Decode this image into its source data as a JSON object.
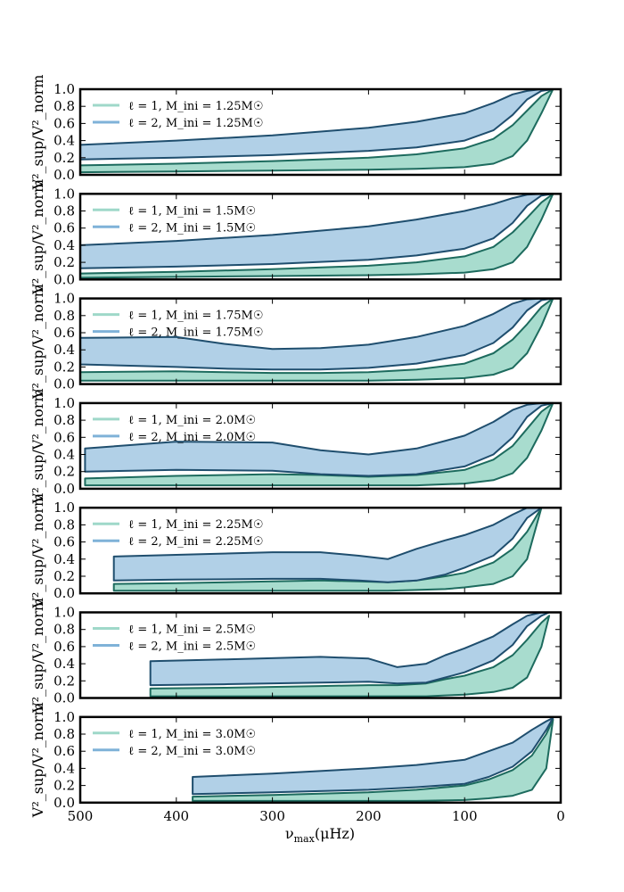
{
  "chart_data": {
    "type": "area",
    "shared_x_axis": {
      "label": "ν_max(μHz)",
      "label_text": "ν",
      "label_sub": "max",
      "label_unit": "(μHz)",
      "xlim": [
        500,
        0
      ],
      "ticks": [
        500,
        400,
        300,
        200,
        100,
        0
      ],
      "tick_labels": [
        "500",
        "400",
        "300",
        "200",
        "100",
        "0"
      ]
    },
    "ylabel": "V²_sup/V²_norm",
    "ylim": [
      0,
      1
    ],
    "y_ticks": [
      0.0,
      0.2,
      0.4,
      0.6,
      0.8,
      1.0
    ],
    "y_tick_labels": [
      "0.0",
      "0.2",
      "0.4",
      "0.6",
      "0.8",
      "1.0"
    ],
    "series_colors": {
      "l1": "#9fd8c9",
      "l2": "#a9cbe4",
      "edge": "#1f4e6e",
      "l1_edge": "#1d6b5e"
    },
    "panels": [
      {
        "legend": [
          "ℓ = 1, M_ini = 1.25M☉",
          "ℓ = 2, M_ini = 1.25M☉"
        ],
        "mass": "1.25",
        "l2_band": {
          "x": [
            500,
            400,
            300,
            200,
            150,
            100,
            70,
            50,
            35,
            20,
            8
          ],
          "upper": [
            0.35,
            0.4,
            0.46,
            0.55,
            0.62,
            0.72,
            0.84,
            0.94,
            0.98,
            1.0,
            1.0
          ],
          "lower": [
            0.18,
            0.2,
            0.23,
            0.28,
            0.32,
            0.4,
            0.52,
            0.7,
            0.88,
            0.98,
            1.0
          ]
        },
        "l1_band": {
          "x": [
            500,
            400,
            300,
            200,
            150,
            100,
            70,
            50,
            35,
            20,
            8
          ],
          "upper": [
            0.11,
            0.13,
            0.16,
            0.2,
            0.24,
            0.31,
            0.42,
            0.58,
            0.75,
            0.92,
            1.0
          ],
          "lower": [
            0.03,
            0.04,
            0.05,
            0.06,
            0.07,
            0.09,
            0.13,
            0.22,
            0.4,
            0.72,
            1.0
          ]
        }
      },
      {
        "legend": [
          "ℓ = 1, M_ini = 1.5M☉",
          "ℓ = 2, M_ini = 1.5M☉"
        ],
        "mass": "1.5",
        "l2_band": {
          "x": [
            500,
            400,
            300,
            200,
            150,
            100,
            70,
            50,
            35,
            20,
            8
          ],
          "upper": [
            0.4,
            0.45,
            0.52,
            0.62,
            0.7,
            0.8,
            0.88,
            0.95,
            0.99,
            1.0,
            1.0
          ],
          "lower": [
            0.13,
            0.15,
            0.18,
            0.23,
            0.28,
            0.36,
            0.48,
            0.66,
            0.86,
            0.98,
            1.0
          ]
        },
        "l1_band": {
          "x": [
            500,
            400,
            300,
            200,
            150,
            100,
            70,
            50,
            35,
            20,
            8
          ],
          "upper": [
            0.07,
            0.09,
            0.12,
            0.16,
            0.2,
            0.27,
            0.38,
            0.55,
            0.72,
            0.9,
            1.0
          ],
          "lower": [
            0.02,
            0.03,
            0.04,
            0.05,
            0.06,
            0.08,
            0.12,
            0.2,
            0.38,
            0.7,
            1.0
          ]
        }
      },
      {
        "legend": [
          "ℓ = 1, M_ini = 1.75M☉",
          "ℓ = 2, M_ini = 1.75M☉"
        ],
        "mass": "1.75",
        "l2_band": {
          "x": [
            500,
            400,
            350,
            300,
            250,
            200,
            150,
            100,
            70,
            50,
            35,
            20,
            8
          ],
          "upper": [
            0.54,
            0.55,
            0.47,
            0.41,
            0.42,
            0.46,
            0.55,
            0.68,
            0.82,
            0.94,
            0.99,
            1.0,
            1.0
          ],
          "lower": [
            0.23,
            0.2,
            0.18,
            0.17,
            0.17,
            0.19,
            0.24,
            0.34,
            0.48,
            0.66,
            0.86,
            0.98,
            1.0
          ]
        },
        "l1_band": {
          "x": [
            500,
            400,
            350,
            300,
            250,
            200,
            150,
            100,
            70,
            50,
            35,
            20,
            8
          ],
          "upper": [
            0.14,
            0.15,
            0.14,
            0.13,
            0.13,
            0.14,
            0.17,
            0.24,
            0.36,
            0.52,
            0.7,
            0.9,
            1.0
          ],
          "lower": [
            0.04,
            0.04,
            0.04,
            0.04,
            0.04,
            0.04,
            0.05,
            0.07,
            0.11,
            0.19,
            0.36,
            0.68,
            1.0
          ]
        }
      },
      {
        "legend": [
          "ℓ = 1, M_ini = 2.0M☉",
          "ℓ = 2, M_ini = 2.0M☉"
        ],
        "mass": "2.0",
        "l2_band": {
          "x": [
            495,
            400,
            300,
            250,
            200,
            150,
            100,
            70,
            50,
            35,
            20,
            8
          ],
          "upper": [
            0.47,
            0.55,
            0.54,
            0.45,
            0.4,
            0.47,
            0.62,
            0.78,
            0.92,
            0.98,
            1.0,
            1.0
          ],
          "lower": [
            0.2,
            0.22,
            0.21,
            0.17,
            0.15,
            0.17,
            0.26,
            0.4,
            0.6,
            0.84,
            0.97,
            1.0
          ]
        },
        "l1_band": {
          "x": [
            495,
            400,
            300,
            250,
            200,
            150,
            100,
            70,
            50,
            35,
            20,
            8
          ],
          "upper": [
            0.12,
            0.15,
            0.17,
            0.16,
            0.14,
            0.16,
            0.22,
            0.34,
            0.5,
            0.7,
            0.9,
            1.0
          ],
          "lower": [
            0.04,
            0.04,
            0.04,
            0.04,
            0.04,
            0.04,
            0.06,
            0.1,
            0.18,
            0.36,
            0.68,
            1.0
          ]
        }
      },
      {
        "legend": [
          "ℓ = 1, M_ini = 2.25M☉",
          "ℓ = 2, M_ini = 2.25M☉"
        ],
        "mass": "2.25",
        "l2_band": {
          "x": [
            465,
            400,
            300,
            250,
            210,
            180,
            150,
            120,
            100,
            70,
            50,
            35,
            20
          ],
          "upper": [
            0.43,
            0.45,
            0.48,
            0.48,
            0.44,
            0.4,
            0.52,
            0.62,
            0.68,
            0.8,
            0.92,
            1.0,
            1.0
          ],
          "lower": [
            0.15,
            0.16,
            0.17,
            0.17,
            0.15,
            0.13,
            0.15,
            0.22,
            0.3,
            0.44,
            0.64,
            0.88,
            1.0
          ]
        },
        "l1_band": {
          "x": [
            465,
            400,
            300,
            250,
            210,
            180,
            150,
            120,
            100,
            70,
            50,
            35,
            20
          ],
          "upper": [
            0.11,
            0.12,
            0.14,
            0.15,
            0.14,
            0.13,
            0.15,
            0.2,
            0.24,
            0.36,
            0.52,
            0.72,
            1.0
          ],
          "lower": [
            0.03,
            0.03,
            0.03,
            0.03,
            0.03,
            0.03,
            0.04,
            0.05,
            0.07,
            0.11,
            0.2,
            0.4,
            1.0
          ]
        }
      },
      {
        "legend": [
          "ℓ = 1, M_ini = 2.5M☉",
          "ℓ = 2, M_ini = 2.5M☉"
        ],
        "mass": "2.5",
        "l2_band": {
          "x": [
            427,
            350,
            250,
            200,
            170,
            140,
            120,
            100,
            70,
            50,
            35,
            20,
            12
          ],
          "upper": [
            0.43,
            0.45,
            0.48,
            0.46,
            0.36,
            0.4,
            0.5,
            0.58,
            0.72,
            0.86,
            0.96,
            1.0,
            1.0
          ],
          "lower": [
            0.15,
            0.16,
            0.18,
            0.19,
            0.17,
            0.18,
            0.24,
            0.3,
            0.44,
            0.62,
            0.84,
            0.96,
            1.0
          ]
        },
        "l1_band": {
          "x": [
            427,
            350,
            250,
            200,
            170,
            140,
            120,
            100,
            70,
            50,
            35,
            20,
            12
          ],
          "upper": [
            0.11,
            0.12,
            0.14,
            0.15,
            0.15,
            0.17,
            0.22,
            0.26,
            0.36,
            0.5,
            0.68,
            0.88,
            0.96
          ],
          "lower": [
            0.02,
            0.02,
            0.02,
            0.02,
            0.02,
            0.02,
            0.03,
            0.04,
            0.07,
            0.12,
            0.24,
            0.6,
            0.96
          ]
        }
      },
      {
        "legend": [
          "ℓ = 1, M_ini = 3.0M☉",
          "ℓ = 2, M_ini = 3.0M☉"
        ],
        "mass": "3.0",
        "l2_band": {
          "x": [
            383,
            300,
            200,
            150,
            100,
            75,
            50,
            30,
            15,
            8
          ],
          "upper": [
            0.3,
            0.34,
            0.4,
            0.44,
            0.5,
            0.6,
            0.7,
            0.85,
            0.95,
            0.99
          ],
          "lower": [
            0.1,
            0.12,
            0.15,
            0.18,
            0.22,
            0.3,
            0.42,
            0.6,
            0.85,
            0.99
          ]
        },
        "l1_band": {
          "x": [
            383,
            300,
            200,
            150,
            100,
            75,
            50,
            30,
            15,
            8
          ],
          "upper": [
            0.07,
            0.09,
            0.12,
            0.15,
            0.2,
            0.27,
            0.38,
            0.55,
            0.8,
            0.97
          ],
          "lower": [
            0.02,
            0.02,
            0.02,
            0.02,
            0.03,
            0.05,
            0.08,
            0.15,
            0.4,
            0.97
          ]
        }
      }
    ]
  }
}
